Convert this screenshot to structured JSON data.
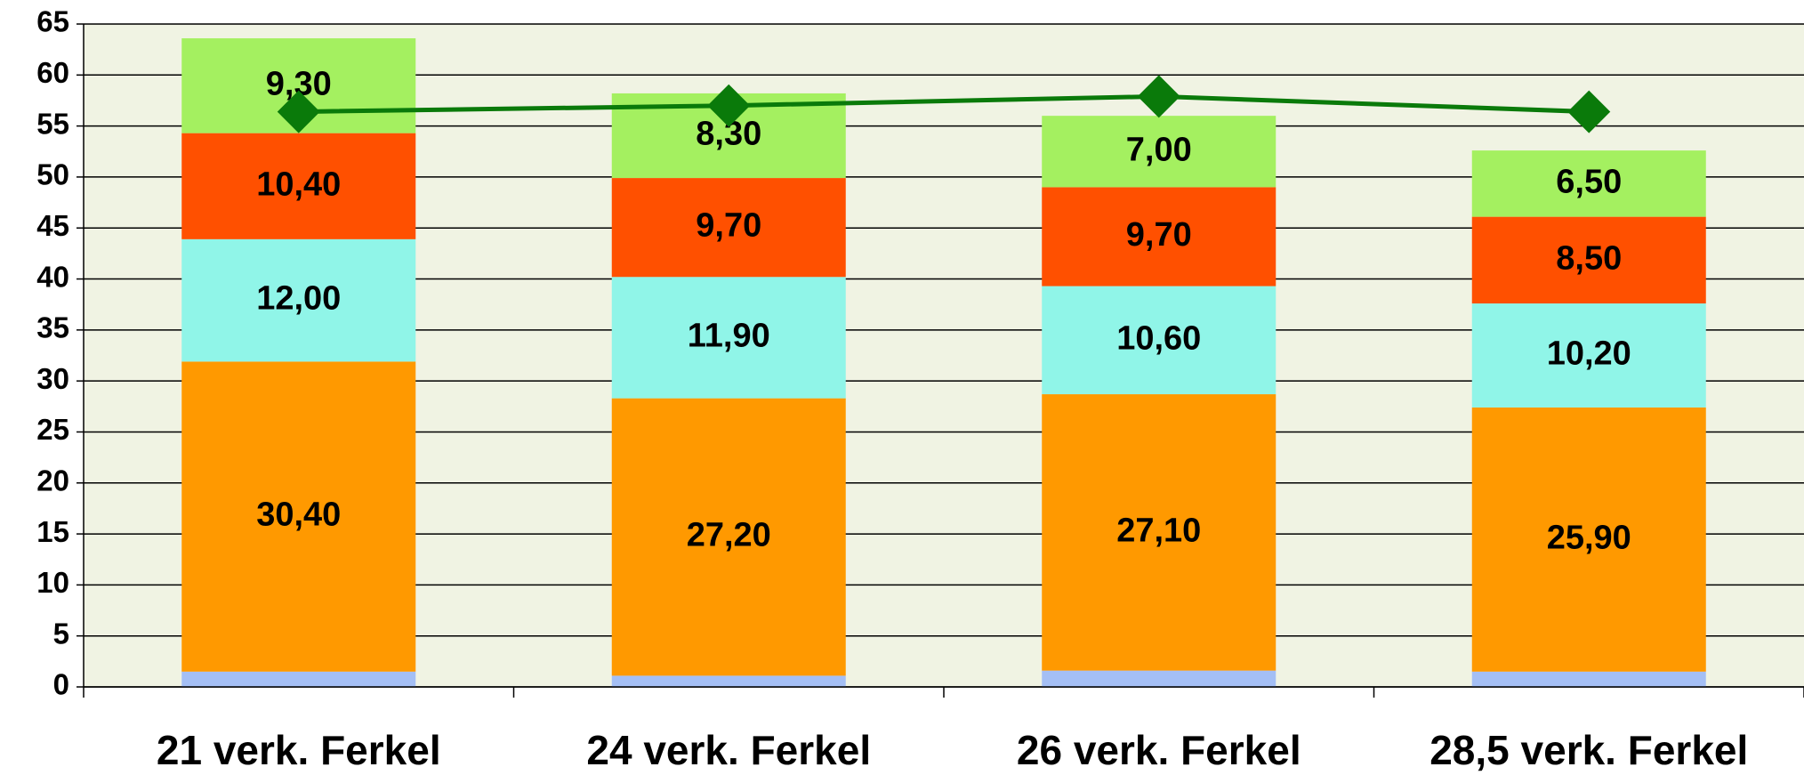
{
  "chart_data": {
    "type": "bar",
    "stacked": true,
    "categories": [
      "21 verk. Ferkel",
      "24 verk. Ferkel",
      "26 verk. Ferkel",
      "28,5 verk. Ferkel"
    ],
    "series": [
      {
        "color": "#a4bff5",
        "values": [
          1.5,
          1.1,
          1.6,
          1.5
        ]
      },
      {
        "color": "#ff9900",
        "values": [
          30.4,
          27.2,
          27.1,
          25.9
        ],
        "value_labels": [
          "30,40",
          "27,20",
          "27,10",
          "25,90"
        ]
      },
      {
        "color": "#90f5e8",
        "values": [
          12.0,
          11.9,
          10.6,
          10.2
        ],
        "value_labels": [
          "12,00",
          "11,90",
          "10,60",
          "10,20"
        ]
      },
      {
        "color": "#ff5000",
        "values": [
          10.4,
          9.7,
          9.7,
          8.5
        ],
        "value_labels": [
          "10,40",
          "9,70",
          "9,70",
          "8,50"
        ]
      },
      {
        "color": "#a4f060",
        "values": [
          9.3,
          8.3,
          7.0,
          6.5
        ],
        "value_labels": [
          "9,30",
          "8,30",
          "7,00",
          "6,50"
        ]
      },
      {
        "type": "line",
        "color": "#0a7a0a",
        "values": [
          56.4,
          57.0,
          57.9,
          56.4
        ]
      }
    ],
    "ylim": [
      0,
      65
    ],
    "yticks": [
      0,
      5,
      10,
      15,
      20,
      25,
      30,
      35,
      40,
      45,
      50,
      55,
      60,
      65
    ],
    "grid": true
  }
}
